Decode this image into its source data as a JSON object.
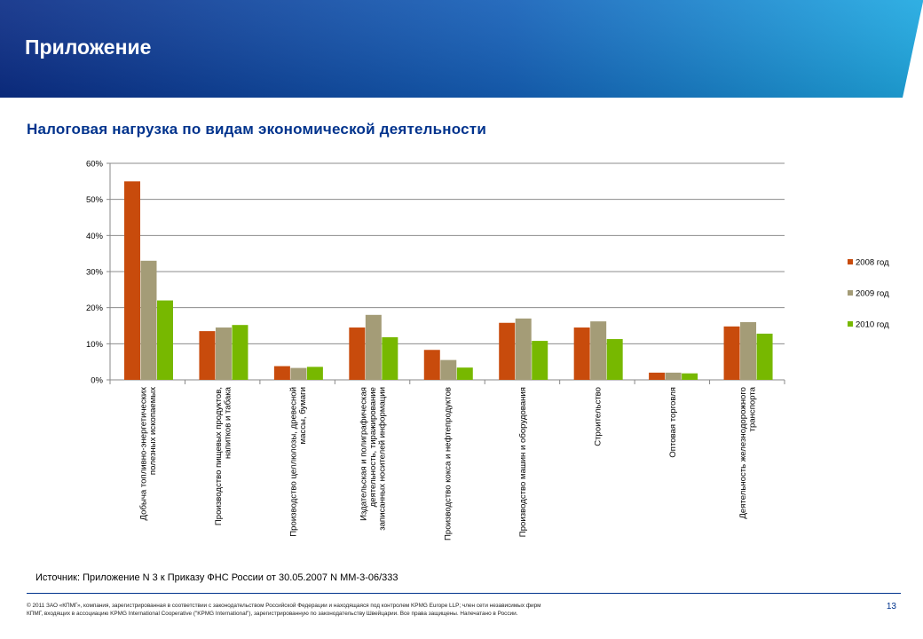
{
  "header": {
    "title": "Приложение",
    "gradient_from": "#0b2d86",
    "gradient_to": "#1fa9e1"
  },
  "chart_title": "Налоговая нагрузка по видам экономической деятельности",
  "chart_data": {
    "type": "bar",
    "title": "",
    "xlabel": "",
    "ylabel": "",
    "ylim": [
      0,
      60
    ],
    "yticks": [
      0,
      10,
      20,
      30,
      40,
      50,
      60
    ],
    "ytick_labels": [
      "0%",
      "10%",
      "20%",
      "30%",
      "40%",
      "50%",
      "60%"
    ],
    "grid": true,
    "legend_position": "right",
    "categories": [
      [
        "Добыча топливно-энергетических",
        "полезных ископаемых"
      ],
      [
        "Производство пищевых продуктов,",
        "напитков и табака"
      ],
      [
        "Производство целлюлозы, древесной",
        "массы, бумаги"
      ],
      [
        "Издательская и полиграфическая",
        "деятельность, тиражирование",
        "записанных носителей информации"
      ],
      [
        "Производство кокса и нефтепродуктов"
      ],
      [
        "Производство машин и оборудования"
      ],
      [
        "Строительство"
      ],
      [
        "Оптовая торговля"
      ],
      [
        "Деятельность железнодорожного",
        "транспорта"
      ]
    ],
    "series": [
      {
        "name": "2008 год",
        "color": "#c84b0c",
        "values": [
          55,
          13.5,
          3.8,
          14.5,
          8.3,
          15.8,
          14.5,
          2,
          14.8
        ]
      },
      {
        "name": "2009 год",
        "color": "#a49c77",
        "values": [
          33,
          14.5,
          3.3,
          18,
          5.5,
          17,
          16.2,
          2,
          16
        ]
      },
      {
        "name": "2010 год",
        "color": "#77b800",
        "values": [
          22,
          15.2,
          3.6,
          11.8,
          3.4,
          10.8,
          11.3,
          1.8,
          12.8
        ]
      }
    ]
  },
  "source": "Источник: Приложение N 3 к Приказу ФНС России от 30.05.2007 N ММ-3-06/333",
  "footer": {
    "legal_text": "© 2011 ЗАО «КПМГ», компания, зарегистрированная в соответствии с законодательством Российской Федерации и находящаяся под контролем KPMG Europe LLP; член сети независимых фирм КПМГ, входящих в ассоциацию KPMG International Cooperative (\"KPMG International\"), зарегистрированную по законодательству Швейцарии. Все права защищены. Напечатано в России.",
    "page_number": "13"
  }
}
